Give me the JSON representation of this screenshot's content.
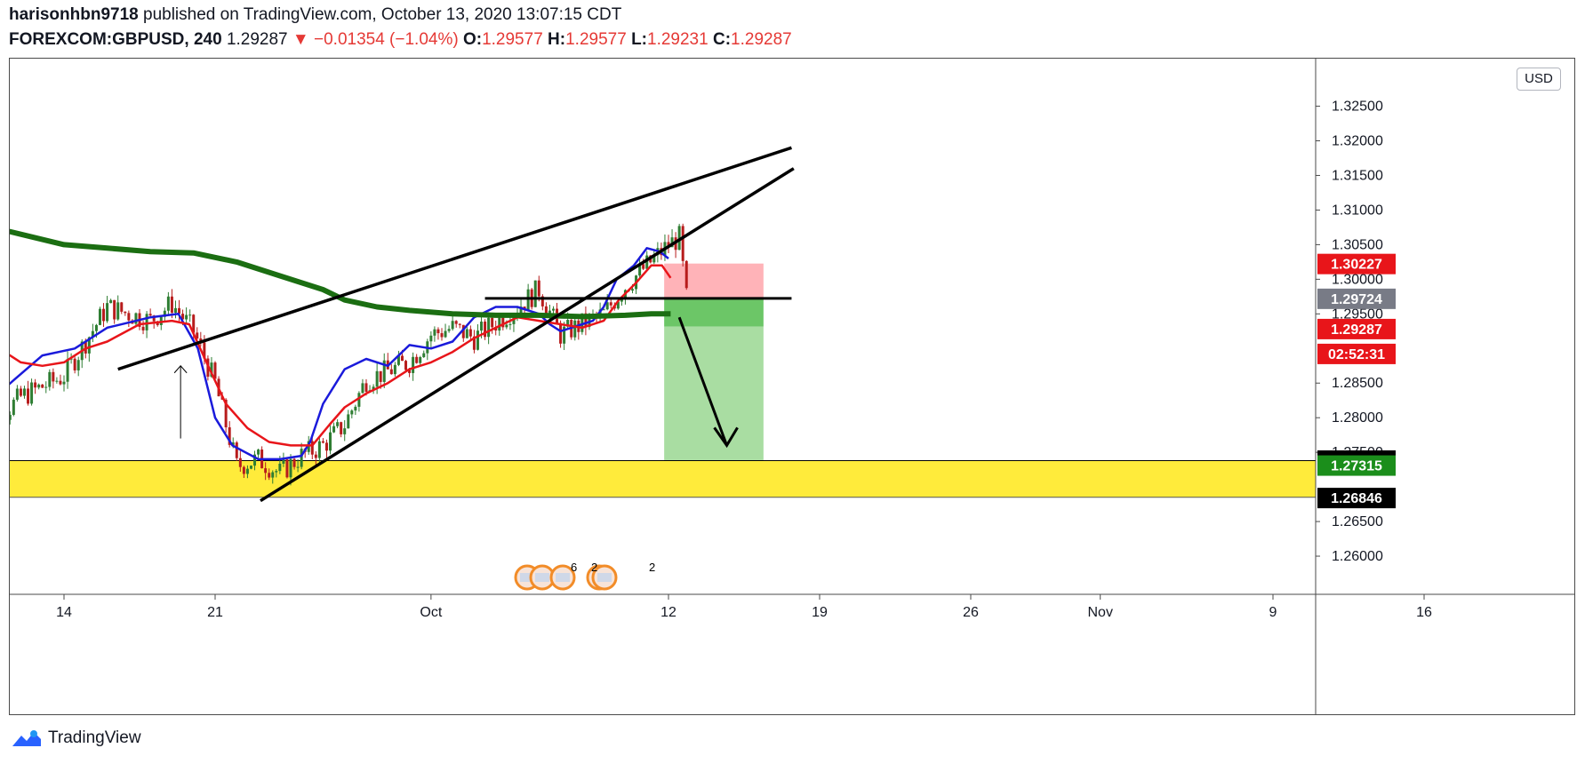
{
  "header": {
    "user": "harisonhbn9718",
    "published_text": "published on TradingView.com, October 13, 2020 13:07:15 CDT",
    "symbol": "FOREXCOM:GBPUSD, 240",
    "last": "1.29287",
    "change": "−0.01354 (−1.04%)",
    "o_label": "O:",
    "o_value": "1.29577",
    "h_label": "H:",
    "h_value": "1.29577",
    "l_label": "L:",
    "l_value": "1.29231",
    "c_label": "C:",
    "c_value": "1.29287"
  },
  "currency_button": "USD",
  "footer": {
    "brand": "TradingView"
  },
  "colors": {
    "up": "#2e7d32",
    "down": "#b71c1c",
    "ema_fast": "#1a1adb",
    "ema_slow": "#e8151a",
    "ema_long": "#1b6e12",
    "zone": "#ffeb3b",
    "stop": "#ffb3b8",
    "target": "#a9dda2",
    "target_dark": "#6cc667"
  },
  "chart_data": {
    "type": "candlestick",
    "symbol": "FOREXCOM:GBPUSD",
    "interval": "240",
    "ylim": [
      1.255,
      1.332
    ],
    "y_ticks": [
      "1.32500",
      "1.32000",
      "1.31500",
      "1.31000",
      "1.30500",
      "1.30000",
      "1.29500",
      "1.28500",
      "1.28000",
      "1.27500",
      "1.26500",
      "1.26000"
    ],
    "x_ticks": [
      {
        "label": "14",
        "date": "2020-09-14"
      },
      {
        "label": "21",
        "date": "2020-09-21"
      },
      {
        "label": "Oct",
        "date": "2020-10-01"
      },
      {
        "label": "12",
        "date": "2020-10-12"
      },
      {
        "label": "19",
        "date": "2020-10-19"
      },
      {
        "label": "26",
        "date": "2020-10-26"
      },
      {
        "label": "Nov",
        "date": "2020-11-01"
      },
      {
        "label": "9",
        "date": "2020-11-09"
      },
      {
        "label": "16",
        "date": "2020-11-16"
      }
    ],
    "price_labels": [
      {
        "value": "1.30227",
        "color": "#e8151a",
        "price": 1.30227
      },
      {
        "value": "1.29724",
        "color": "#787b86",
        "price": 1.29724
      },
      {
        "value": "1.29287",
        "color": "#e8151a",
        "price": 1.29287
      },
      {
        "value": "02:52:31",
        "color": "#e8151a",
        "price": 1.29
      },
      {
        "value": "1.27387",
        "color": "#000000",
        "price": 1.27387
      },
      {
        "value": "1.27315",
        "color": "#1b8e1b",
        "price": 1.27315
      },
      {
        "value": "1.26846",
        "color": "#000000",
        "price": 1.26846
      }
    ],
    "close_path": [
      {
        "date": "2020-09-10",
        "close": 1.2995
      },
      {
        "date": "2020-09-11",
        "close": 1.28
      },
      {
        "date": "2020-09-12",
        "close": 1.283
      },
      {
        "date": "2020-09-14",
        "close": 1.286
      },
      {
        "date": "2020-09-16",
        "close": 1.296
      },
      {
        "date": "2020-09-18",
        "close": 1.294
      },
      {
        "date": "2020-09-19",
        "close": 1.2965
      },
      {
        "date": "2020-09-20",
        "close": 1.2925
      },
      {
        "date": "2020-09-21",
        "close": 1.285
      },
      {
        "date": "2020-09-22",
        "close": 1.273
      },
      {
        "date": "2020-09-23",
        "close": 1.274
      },
      {
        "date": "2020-09-24",
        "close": 1.272
      },
      {
        "date": "2020-09-25",
        "close": 1.2745
      },
      {
        "date": "2020-09-26",
        "close": 1.276
      },
      {
        "date": "2020-09-27",
        "close": 1.279
      },
      {
        "date": "2020-09-28",
        "close": 1.2855
      },
      {
        "date": "2020-09-30",
        "close": 1.288
      },
      {
        "date": "2020-10-01",
        "close": 1.292
      },
      {
        "date": "2020-10-02",
        "close": 1.293
      },
      {
        "date": "2020-10-03",
        "close": 1.2915
      },
      {
        "date": "2020-10-05",
        "close": 1.296
      },
      {
        "date": "2020-10-06",
        "close": 1.2985
      },
      {
        "date": "2020-10-07",
        "close": 1.292
      },
      {
        "date": "2020-10-08",
        "close": 1.2935
      },
      {
        "date": "2020-10-09",
        "close": 1.295
      },
      {
        "date": "2020-10-10",
        "close": 1.299
      },
      {
        "date": "2020-10-11",
        "close": 1.302
      },
      {
        "date": "2020-10-12",
        "close": 1.305
      },
      {
        "date": "2020-10-12.5",
        "close": 1.306
      },
      {
        "date": "2020-10-13",
        "close": 1.2929
      }
    ],
    "moving_averages": [
      {
        "color": "#1a1adb",
        "points": [
          [
            -5.3,
            1.3
          ],
          [
            -4.8,
            1.299
          ],
          [
            -4.0,
            1.29
          ],
          [
            -3.2,
            1.283
          ],
          [
            -2.3,
            1.2855
          ],
          [
            -1,
            1.289
          ],
          [
            0.5,
            1.29
          ],
          [
            2,
            1.293
          ],
          [
            4,
            1.2945
          ],
          [
            5.3,
            1.295
          ],
          [
            6.2,
            1.29
          ],
          [
            7,
            1.28
          ],
          [
            7.8,
            1.276
          ],
          [
            9,
            1.274
          ],
          [
            10,
            1.274
          ],
          [
            11,
            1.2745
          ],
          [
            11.4,
            1.2765
          ],
          [
            12,
            1.282
          ],
          [
            13,
            1.287
          ],
          [
            14,
            1.2885
          ],
          [
            15,
            1.2875
          ],
          [
            16,
            1.2905
          ],
          [
            17,
            1.29
          ],
          [
            18,
            1.291
          ],
          [
            19,
            1.2945
          ],
          [
            20,
            1.296
          ],
          [
            21,
            1.296
          ],
          [
            22,
            1.295
          ],
          [
            22.5,
            1.2935
          ],
          [
            23,
            1.2925
          ],
          [
            24,
            1.2935
          ],
          [
            24.5,
            1.294
          ],
          [
            25,
            1.296
          ],
          [
            25.6,
            1.3
          ],
          [
            26.4,
            1.302
          ],
          [
            27,
            1.3045
          ],
          [
            27.6,
            1.304
          ],
          [
            28,
            1.303
          ]
        ]
      },
      {
        "color": "#e8151a",
        "points": [
          [
            -5.3,
            1.307
          ],
          [
            -4.6,
            1.304
          ],
          [
            -3.8,
            1.296
          ],
          [
            -3,
            1.29
          ],
          [
            -2,
            1.288
          ],
          [
            -1,
            1.2875
          ],
          [
            0,
            1.288
          ],
          [
            1,
            1.29
          ],
          [
            2,
            1.291
          ],
          [
            3.5,
            1.2935
          ],
          [
            5,
            1.294
          ],
          [
            5.8,
            1.2935
          ],
          [
            6.6,
            1.288
          ],
          [
            7.5,
            1.282
          ],
          [
            8.5,
            1.2785
          ],
          [
            9.5,
            1.2765
          ],
          [
            10.5,
            1.276
          ],
          [
            11.5,
            1.276
          ],
          [
            12.3,
            1.279
          ],
          [
            13,
            1.2815
          ],
          [
            14,
            1.2835
          ],
          [
            15,
            1.285
          ],
          [
            16,
            1.287
          ],
          [
            17,
            1.288
          ],
          [
            18,
            1.2895
          ],
          [
            19,
            1.2915
          ],
          [
            20,
            1.293
          ],
          [
            21,
            1.2945
          ],
          [
            22,
            1.294
          ],
          [
            23,
            1.2935
          ],
          [
            24,
            1.293
          ],
          [
            25,
            1.294
          ],
          [
            25.7,
            1.297
          ],
          [
            26.5,
            1.2995
          ],
          [
            27.2,
            1.302
          ],
          [
            27.7,
            1.302
          ],
          [
            28.1,
            1.3002
          ]
        ]
      },
      {
        "color": "#1b6e12",
        "points": [
          [
            -5.3,
            1.3085
          ],
          [
            -4,
            1.308
          ],
          [
            -2,
            1.3065
          ],
          [
            0,
            1.305
          ],
          [
            2,
            1.3045
          ],
          [
            4,
            1.304
          ],
          [
            6,
            1.3038
          ],
          [
            8,
            1.3025
          ],
          [
            10,
            1.3005
          ],
          [
            12,
            1.2985
          ],
          [
            13,
            1.297
          ],
          [
            14.5,
            1.296
          ],
          [
            16,
            1.2955
          ],
          [
            18,
            1.295
          ],
          [
            20,
            1.2948
          ],
          [
            22,
            1.2948
          ],
          [
            24,
            1.2946
          ],
          [
            26,
            1.2948
          ],
          [
            27.2,
            1.295
          ],
          [
            28.1,
            1.295
          ]
        ]
      }
    ],
    "drawings": {
      "support_zone": {
        "top": 1.2738,
        "bottom": 1.2685
      },
      "horizontal_line": {
        "price": 1.29724
      },
      "channel_upper": {
        "from": [
          2.5,
          1.287
        ],
        "to": [
          33.7,
          1.319
        ]
      },
      "channel_lower": {
        "from": [
          9.1,
          1.268
        ],
        "to": [
          33.8,
          1.316
        ]
      },
      "position_box": {
        "x0": 27.8,
        "x1": 32.4,
        "stop": 1.30227,
        "entry": 1.29724,
        "mid": 1.29315,
        "target": 1.27387
      },
      "arrow_down": {
        "from": [
          28.5,
          1.2945
        ],
        "to": [
          30.7,
          1.276
        ]
      },
      "arrow_up_small": {
        "from": [
          5.4,
          1.277
        ],
        "to": [
          5.4,
          1.2875
        ]
      }
    },
    "event_badges": [
      {
        "count": "6"
      },
      {
        "count": "2"
      },
      {
        "count": "2"
      }
    ]
  }
}
